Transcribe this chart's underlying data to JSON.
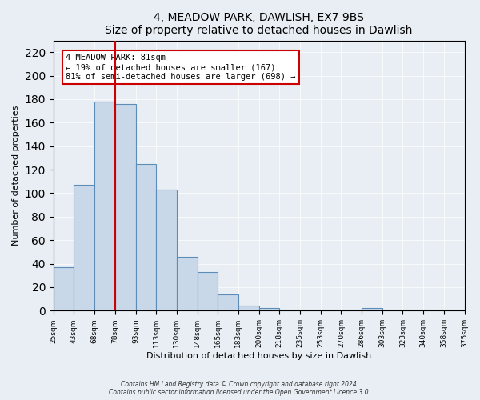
{
  "title": "4, MEADOW PARK, DAWLISH, EX7 9BS",
  "subtitle": "Size of property relative to detached houses in Dawlish",
  "xlabel": "Distribution of detached houses by size in Dawlish",
  "ylabel": "Number of detached properties",
  "bar_labels": [
    "25sqm",
    "43sqm",
    "68sqm",
    "78sqm",
    "93sqm",
    "113sqm",
    "130sqm",
    "148sqm",
    "165sqm",
    "183sqm",
    "200sqm",
    "218sqm",
    "235sqm",
    "253sqm",
    "270sqm",
    "286sqm",
    "303sqm",
    "323sqm",
    "340sqm",
    "358sqm",
    "375sqm"
  ],
  "bar_values": [
    37,
    107,
    178,
    176,
    125,
    103,
    46,
    33,
    14,
    4,
    2,
    1,
    1,
    1,
    1,
    2,
    1,
    1,
    1,
    1
  ],
  "bar_color": "#c8d8e8",
  "bar_edge_color": "#5b8db8",
  "ylim": [
    0,
    230
  ],
  "yticks": [
    0,
    20,
    40,
    60,
    80,
    100,
    120,
    140,
    160,
    180,
    200,
    220
  ],
  "property_line_color": "#cc0000",
  "annotation_title": "4 MEADOW PARK: 81sqm",
  "annotation_line1": "← 19% of detached houses are smaller (167)",
  "annotation_line2": "81% of semi-detached houses are larger (698) →",
  "annotation_box_color": "#cc0000",
  "annotation_fill": "#ffffff",
  "footer1": "Contains HM Land Registry data © Crown copyright and database right 2024.",
  "footer2": "Contains public sector information licensed under the Open Government Licence 3.0.",
  "bg_color": "#e8eef4",
  "plot_bg_color": "#e8eef4"
}
